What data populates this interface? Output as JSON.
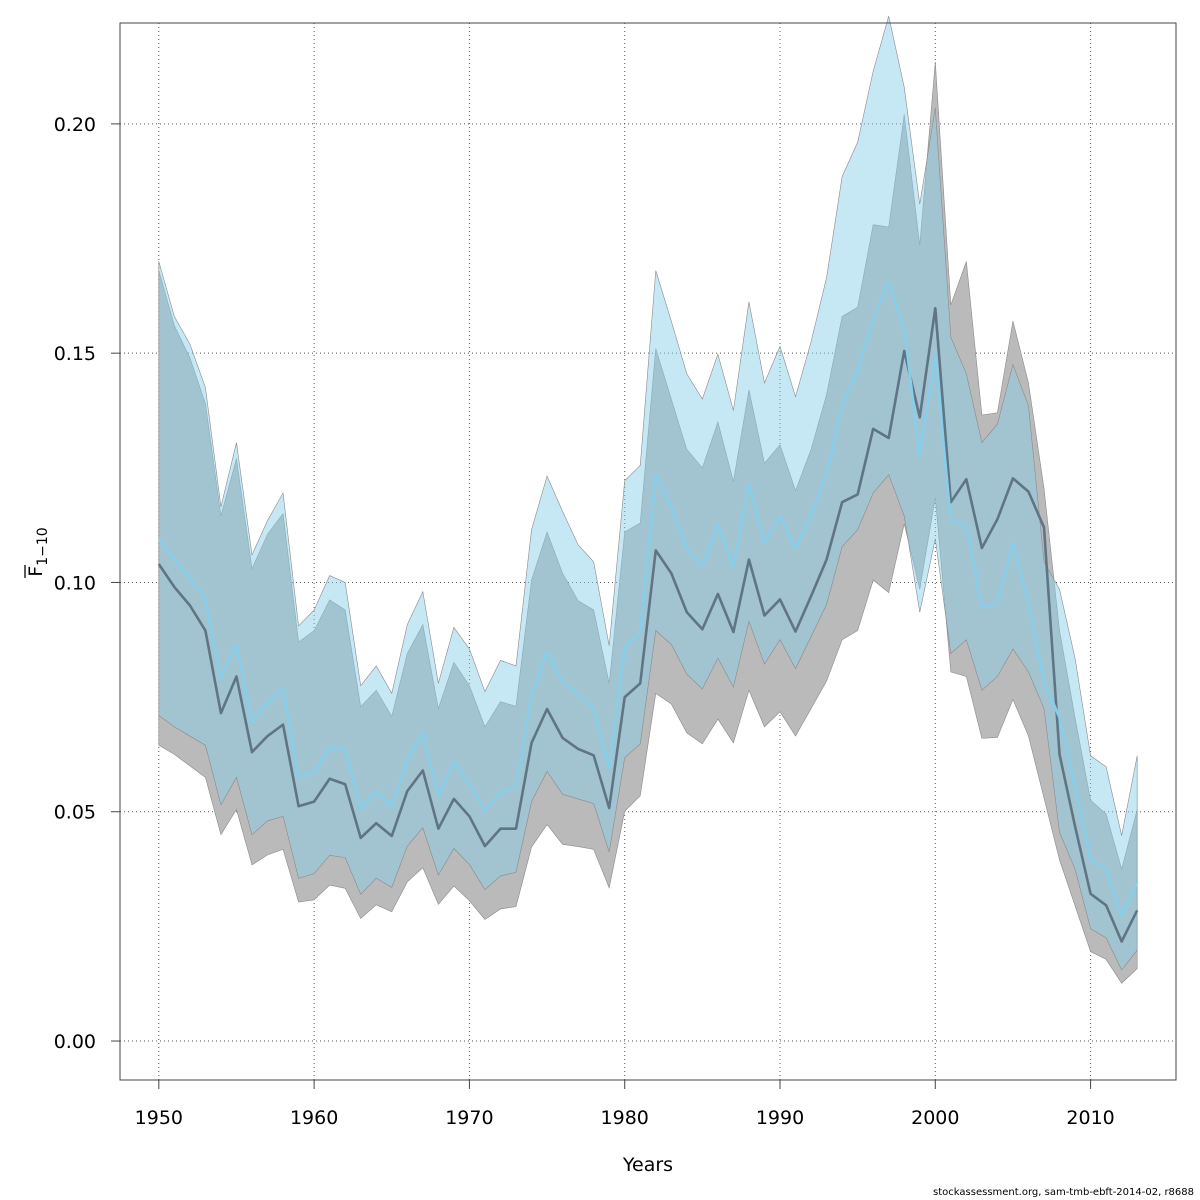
{
  "chart_data": {
    "type": "line",
    "xlabel": "Years",
    "ylabel_main": "F",
    "ylabel_sub": "1−10",
    "xlim": [
      1947.5,
      2015.5
    ],
    "ylim": [
      -0.0085,
      0.222
    ],
    "x_ticks": [
      1950,
      1960,
      1970,
      1980,
      1990,
      2000,
      2010
    ],
    "x_tick_labels": [
      "1950",
      "1960",
      "1970",
      "1980",
      "1990",
      "2000",
      "2010"
    ],
    "y_ticks": [
      0.0,
      0.05,
      0.1,
      0.15,
      0.2
    ],
    "y_tick_labels": [
      "0.00",
      "0.05",
      "0.10",
      "0.15",
      "0.20"
    ],
    "grid": true,
    "colors": {
      "grey_band": "#bababa",
      "grey_line": "#5f7585",
      "blue_band": "#87ceeb",
      "blue_line": "#87ceeb",
      "band_outline": "#8a8a8a"
    },
    "x": [
      1950,
      1951,
      1952,
      1953,
      1954,
      1955,
      1956,
      1957,
      1958,
      1959,
      1960,
      1961,
      1962,
      1963,
      1964,
      1965,
      1966,
      1967,
      1968,
      1969,
      1970,
      1971,
      1972,
      1973,
      1974,
      1975,
      1976,
      1977,
      1978,
      1979,
      1980,
      1981,
      1982,
      1983,
      1984,
      1985,
      1986,
      1987,
      1988,
      1989,
      1990,
      1991,
      1992,
      1993,
      1994,
      1995,
      1996,
      1997,
      1998,
      1999,
      2000,
      2001,
      2002,
      2003,
      2004,
      2005,
      2006,
      2007,
      2008,
      2009,
      2010,
      2011,
      2012,
      2013
    ],
    "series": [
      {
        "name": "fit_grey",
        "values": [
          0.104,
          0.099,
          0.095,
          0.0895,
          0.0715,
          0.0795,
          0.063,
          0.0665,
          0.069,
          0.0512,
          0.0522,
          0.0572,
          0.056,
          0.0443,
          0.0475,
          0.0447,
          0.0545,
          0.059,
          0.0463,
          0.0528,
          0.049,
          0.0425,
          0.0463,
          0.0463,
          0.065,
          0.0724,
          0.0661,
          0.0637,
          0.0623,
          0.0508,
          0.075,
          0.078,
          0.107,
          0.102,
          0.0935,
          0.0898,
          0.0975,
          0.0892,
          0.105,
          0.0928,
          0.0963,
          0.0893,
          0.097,
          0.105,
          0.1175,
          0.1192,
          0.1335,
          0.1315,
          0.1505,
          0.136,
          0.1598,
          0.1175,
          0.1225,
          0.1075,
          0.1138,
          0.1227,
          0.1198,
          0.112,
          0.0625,
          0.0468,
          0.0321,
          0.0296,
          0.0217,
          0.0285
        ],
        "low": [
          0.0645,
          0.0625,
          0.06,
          0.0575,
          0.045,
          0.0505,
          0.0384,
          0.0406,
          0.0418,
          0.0303,
          0.0308,
          0.034,
          0.0333,
          0.0267,
          0.0297,
          0.0282,
          0.0347,
          0.0378,
          0.0298,
          0.0338,
          0.0306,
          0.0265,
          0.0288,
          0.0293,
          0.0423,
          0.0472,
          0.0429,
          0.0424,
          0.0418,
          0.0334,
          0.0501,
          0.0535,
          0.0758,
          0.0735,
          0.0672,
          0.0648,
          0.0702,
          0.065,
          0.0765,
          0.0685,
          0.0718,
          0.0665,
          0.0725,
          0.0785,
          0.0875,
          0.0895,
          0.1005,
          0.0978,
          0.1128,
          0.0985,
          0.1185,
          0.0805,
          0.0795,
          0.066,
          0.0662,
          0.0745,
          0.0665,
          0.053,
          0.0395,
          0.0295,
          0.0195,
          0.0178,
          0.0126,
          0.0158
        ],
        "high": [
          0.168,
          0.156,
          0.149,
          0.139,
          0.1145,
          0.127,
          0.103,
          0.1105,
          0.115,
          0.087,
          0.0895,
          0.0962,
          0.094,
          0.0729,
          0.0765,
          0.0708,
          0.0845,
          0.0908,
          0.0725,
          0.0826,
          0.0775,
          0.0685,
          0.074,
          0.073,
          0.1005,
          0.111,
          0.102,
          0.096,
          0.094,
          0.078,
          0.111,
          0.113,
          0.151,
          0.14,
          0.129,
          0.125,
          0.135,
          0.122,
          0.142,
          0.126,
          0.13,
          0.12,
          0.129,
          0.141,
          0.158,
          0.16,
          0.178,
          0.1775,
          0.202,
          0.1735,
          0.2135,
          0.1605,
          0.17,
          0.1365,
          0.137,
          0.157,
          0.1435,
          0.1205,
          0.0895,
          0.0705,
          0.0525,
          0.0495,
          0.0375,
          0.0505
        ]
      },
      {
        "name": "fit_blue",
        "values": [
          0.1095,
          0.105,
          0.101,
          0.0965,
          0.079,
          0.0865,
          0.0695,
          0.074,
          0.077,
          0.0575,
          0.0585,
          0.064,
          0.0638,
          0.0505,
          0.0545,
          0.051,
          0.0615,
          0.0672,
          0.0535,
          0.0608,
          0.0562,
          0.0502,
          0.0542,
          0.0553,
          0.0755,
          0.0848,
          0.0785,
          0.0755,
          0.0725,
          0.0595,
          0.0858,
          0.089,
          0.1235,
          0.1165,
          0.1075,
          0.1035,
          0.1125,
          0.1035,
          0.1215,
          0.1085,
          0.1145,
          0.1075,
          0.1145,
          0.1235,
          0.1385,
          0.1465,
          0.1575,
          0.1655,
          0.1555,
          0.1275,
          0.1495,
          0.1135,
          0.1125,
          0.0945,
          0.0955,
          0.1085,
          0.0955,
          0.0785,
          0.0705,
          0.0555,
          0.0395,
          0.0375,
          0.0275,
          0.0345
        ],
        "low": [
          0.071,
          0.0685,
          0.0665,
          0.0645,
          0.0515,
          0.0575,
          0.045,
          0.048,
          0.049,
          0.0355,
          0.0365,
          0.0405,
          0.04,
          0.032,
          0.0355,
          0.0335,
          0.0425,
          0.0465,
          0.0362,
          0.042,
          0.0385,
          0.033,
          0.036,
          0.0368,
          0.0522,
          0.0588,
          0.0538,
          0.0528,
          0.0518,
          0.0412,
          0.0618,
          0.0648,
          0.0895,
          0.0865,
          0.08,
          0.0768,
          0.0835,
          0.0772,
          0.0915,
          0.0822,
          0.0875,
          0.0812,
          0.0882,
          0.0952,
          0.1078,
          0.1115,
          0.1195,
          0.1235,
          0.1145,
          0.0935,
          0.1095,
          0.0845,
          0.0875,
          0.0765,
          0.0795,
          0.0855,
          0.0805,
          0.0725,
          0.0455,
          0.0375,
          0.0245,
          0.0225,
          0.0155,
          0.0198
        ],
        "high": [
          0.17,
          0.158,
          0.152,
          0.1425,
          0.1165,
          0.1305,
          0.106,
          0.1135,
          0.1195,
          0.0905,
          0.094,
          0.1015,
          0.1,
          0.0775,
          0.0818,
          0.0758,
          0.0908,
          0.098,
          0.078,
          0.0902,
          0.0855,
          0.0762,
          0.083,
          0.0818,
          0.1115,
          0.1232,
          0.1155,
          0.1082,
          0.1045,
          0.0862,
          0.1222,
          0.1255,
          0.168,
          0.157,
          0.1455,
          0.14,
          0.1498,
          0.1375,
          0.1612,
          0.1435,
          0.1515,
          0.1405,
          0.1525,
          0.1665,
          0.1885,
          0.196,
          0.2115,
          0.2235,
          0.208,
          0.1825,
          0.2035,
          0.1535,
          0.1455,
          0.1305,
          0.1345,
          0.1475,
          0.1385,
          0.1045,
          0.0985,
          0.0835,
          0.0622,
          0.0598,
          0.0448,
          0.0622
        ]
      }
    ]
  },
  "footer": "stockassessment.org, sam-tmb-ebft-2014-02, r8688"
}
